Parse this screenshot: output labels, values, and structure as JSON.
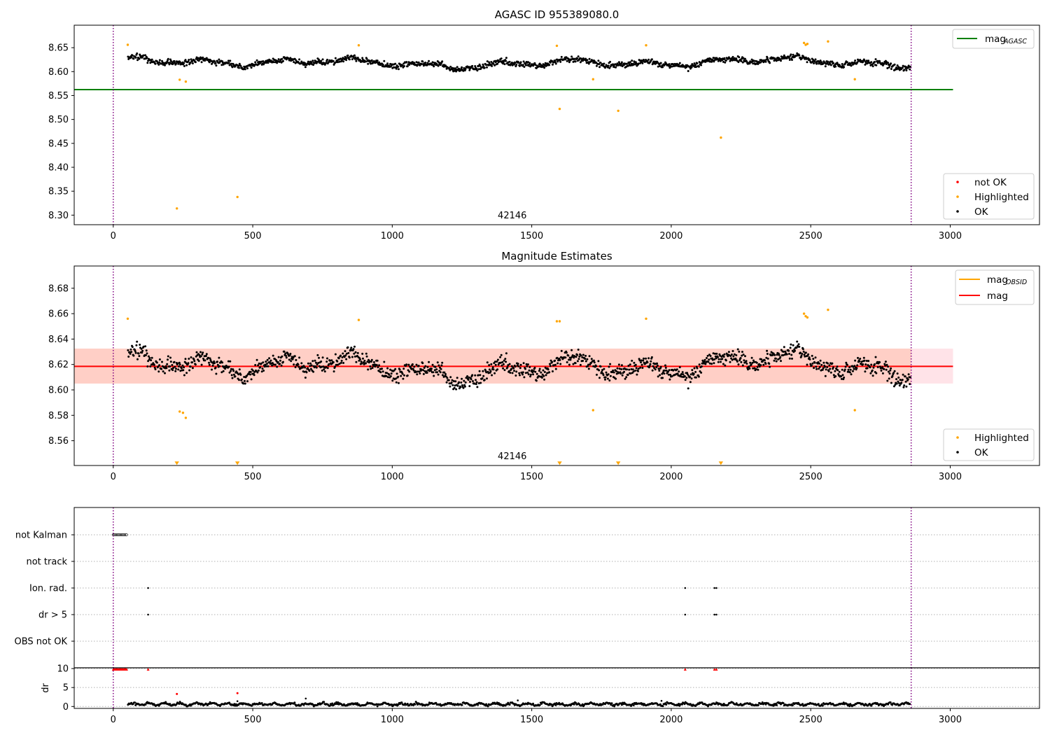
{
  "chart_data": [
    {
      "type": "scatter",
      "title": "AGASC ID 955389080.0",
      "annotation": "42146",
      "xlim": [
        -140,
        3320
      ],
      "ylim": [
        8.28,
        8.697
      ],
      "xticks": [
        0,
        500,
        1000,
        1500,
        2000,
        2500,
        3000
      ],
      "xtick_labels": [
        "0",
        "500",
        "1000",
        "1500",
        "2000",
        "2500",
        "3000"
      ],
      "yticks": [
        8.3,
        8.35,
        8.4,
        8.45,
        8.5,
        8.55,
        8.6,
        8.65
      ],
      "ytick_labels": [
        "8.30",
        "8.35",
        "8.40",
        "8.45",
        "8.50",
        "8.55",
        "8.60",
        "8.65"
      ],
      "hlines": [
        {
          "label": "mag",
          "sub": "AGASC",
          "y": 8.5624,
          "x_range": [
            -140,
            3010
          ],
          "color": "#008000"
        }
      ],
      "vlines": [
        0,
        2860
      ],
      "series": [
        {
          "name": "OK",
          "color": "#000000",
          "x_range": [
            53,
            2857
          ],
          "step": 2,
          "mean": 8.618,
          "amplitude": 0.012,
          "noise": 0.006
        },
        {
          "name": "Highlighted",
          "color": "#ffa500",
          "x": [
            52,
            228,
            238,
            260,
            445,
            880,
            1590,
            1600,
            1720,
            1810,
            1910,
            2178,
            2476,
            2482,
            2488,
            2562,
            2658
          ],
          "y": [
            8.656,
            8.314,
            8.583,
            8.579,
            8.338,
            8.655,
            8.654,
            8.522,
            8.584,
            8.518,
            8.655,
            8.462,
            8.66,
            8.656,
            8.658,
            8.663,
            8.584
          ]
        },
        {
          "name": "not OK",
          "color": "#ff0000",
          "x": [],
          "y": []
        }
      ],
      "legends": [
        {
          "position": "upper-right",
          "entries": [
            {
              "label": "mag",
              "sub": "AGASC",
              "kind": "line",
              "color": "#008000"
            }
          ]
        },
        {
          "position": "lower-right",
          "entries": [
            {
              "label": "not OK",
              "kind": "dot",
              "color": "#ff0000"
            },
            {
              "label": "Highlighted",
              "kind": "dot",
              "color": "#ffa500"
            },
            {
              "label": "OK",
              "kind": "dot",
              "color": "#000000"
            }
          ]
        }
      ]
    },
    {
      "type": "scatter",
      "title": "Magnitude Estimates",
      "annotation": "42146",
      "xlim": [
        -140,
        3320
      ],
      "ylim": [
        8.5405,
        8.6975
      ],
      "xticks": [
        0,
        500,
        1000,
        1500,
        2000,
        2500,
        3000
      ],
      "xtick_labels": [
        "0",
        "500",
        "1000",
        "1500",
        "2000",
        "2500",
        "3000"
      ],
      "yticks": [
        8.56,
        8.58,
        8.6,
        8.62,
        8.64,
        8.66,
        8.68
      ],
      "ytick_labels": [
        "8.56",
        "8.58",
        "8.60",
        "8.62",
        "8.64",
        "8.66",
        "8.68"
      ],
      "hlines": [
        {
          "label": "mag",
          "y": 8.6185,
          "x_range": [
            -140,
            3010
          ],
          "color": "#ff0000"
        }
      ],
      "band": {
        "y_low": 8.605,
        "y_high": 8.6325,
        "x_range": [
          -140,
          3010
        ],
        "color": "#ffaa88"
      },
      "vlines": [
        0,
        2860
      ],
      "series": [
        {
          "name": "OK",
          "color": "#000000",
          "x_range": [
            53,
            2857
          ],
          "step": 2,
          "mean": 8.618,
          "amplitude": 0.012,
          "noise": 0.006
        },
        {
          "name": "Highlighted",
          "color": "#ffa500",
          "x": [
            52,
            238,
            250,
            260,
            880,
            1590,
            1600,
            1720,
            1910,
            2476,
            2482,
            2488,
            2562,
            2658
          ],
          "y": [
            8.656,
            8.583,
            8.582,
            8.578,
            8.655,
            8.654,
            8.654,
            8.584,
            8.656,
            8.66,
            8.658,
            8.657,
            8.663,
            8.584
          ]
        }
      ],
      "offscale_markers": {
        "color": "#ffa500",
        "x": [
          228,
          445,
          1600,
          1810,
          2178
        ]
      },
      "legends": [
        {
          "position": "upper-right",
          "entries": [
            {
              "label": "mag",
              "sub": "OBSID",
              "kind": "line",
              "color": "#ffa500"
            },
            {
              "label": "mag",
              "kind": "line",
              "color": "#ff0000"
            }
          ]
        },
        {
          "position": "lower-right",
          "entries": [
            {
              "label": "Highlighted",
              "kind": "dot",
              "color": "#ffa500"
            },
            {
              "label": "OK",
              "kind": "dot",
              "color": "#000000"
            }
          ]
        }
      ]
    },
    {
      "type": "scatter",
      "title": "",
      "categories": [
        "not Kalman",
        "not track",
        "Ion. rad.",
        "dr > 5",
        "OBS not OK"
      ],
      "xlim": [
        -140,
        3320
      ],
      "vlines": [
        0,
        2860
      ],
      "flags": {
        "not Kalman": {
          "x_range": [
            0,
            50
          ],
          "step": 3
        },
        "not track": {
          "x": []
        },
        "Ion. rad.": {
          "x": [
            125,
            2050,
            2155,
            2162
          ]
        },
        "dr > 5": {
          "x": [
            125,
            2050,
            2155,
            2162
          ]
        },
        "OBS not OK": {
          "x": []
        }
      }
    },
    {
      "type": "scatter",
      "title": "",
      "ylabel": "dr",
      "xlim": [
        -140,
        3320
      ],
      "ylim": [
        -0.5,
        10.2
      ],
      "xticks": [
        0,
        500,
        1000,
        1500,
        2000,
        2500,
        3000
      ],
      "xtick_labels": [
        "0",
        "500",
        "1000",
        "1500",
        "2000",
        "2500",
        "3000"
      ],
      "yticks": [
        0,
        5,
        10
      ],
      "ytick_labels": [
        "0",
        "5",
        "10"
      ],
      "vlines": [
        0,
        2860
      ],
      "series": [
        {
          "name": "OK",
          "color": "#000000",
          "x_range": [
            53,
            2857
          ],
          "step": 3,
          "mean": 0.6,
          "noise": 0.3,
          "extra_x": [
            445,
            690,
            1450,
            1965
          ],
          "extra_y": [
            1.4,
            2.1,
            1.6,
            1.5
          ]
        },
        {
          "name": "not OK",
          "color": "#ff0000",
          "x_range_cap": [
            0,
            50
          ],
          "cap_value": 9.8,
          "x": [
            125,
            228,
            445,
            2050,
            2155,
            2162
          ],
          "y": [
            9.8,
            3.3,
            3.5,
            9.8,
            9.8,
            9.8
          ]
        }
      ]
    }
  ]
}
